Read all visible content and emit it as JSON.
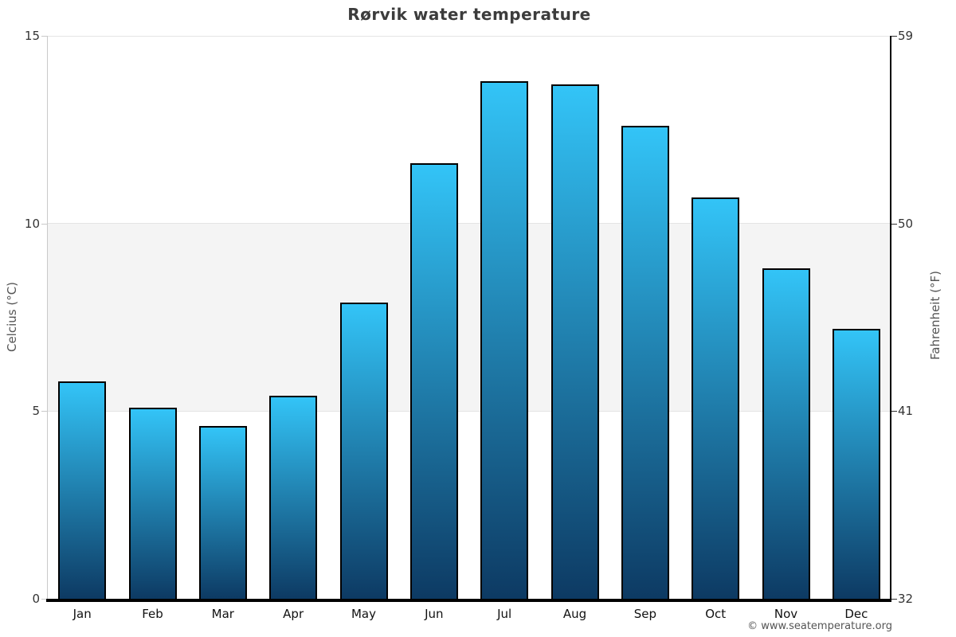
{
  "chart_data": {
    "type": "bar",
    "title": "Rørvik water temperature",
    "categories": [
      "Jan",
      "Feb",
      "Mar",
      "Apr",
      "May",
      "Jun",
      "Jul",
      "Aug",
      "Sep",
      "Oct",
      "Nov",
      "Dec"
    ],
    "values": [
      5.8,
      5.1,
      4.6,
      5.4,
      7.9,
      11.6,
      13.8,
      13.7,
      12.6,
      10.7,
      8.8,
      7.2
    ],
    "ylabel_left": "Celcius (°C)",
    "ylabel_right": "Fahrenheit (°F)",
    "yticks_left": [
      0,
      5,
      10,
      15
    ],
    "yticks_right": [
      32,
      41,
      50,
      59
    ],
    "ylim": [
      0,
      15
    ],
    "grid": true,
    "legend_position": "none",
    "plot_band": {
      "from": 5,
      "to": 10,
      "color": "#f4f4f4"
    },
    "gridline_color": "#e4e4e4",
    "bar_color_top": "#33c4f7",
    "bar_color_bottom": "#0d3a63",
    "bar_border_color": "#000000"
  },
  "attribution": "© www.seatemperature.org"
}
